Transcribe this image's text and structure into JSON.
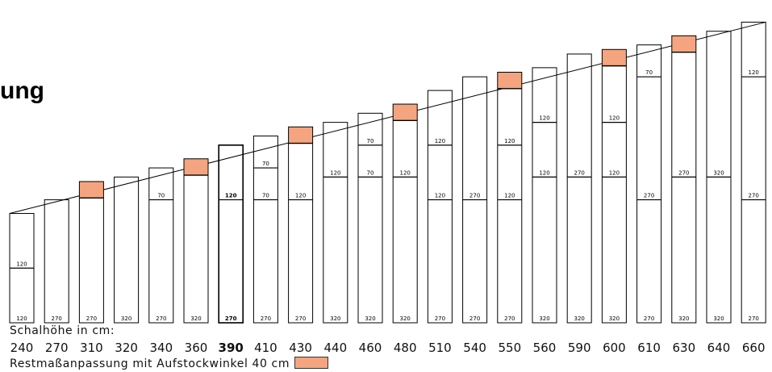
{
  "title_fragment": "ung",
  "height_label": "Schalhöhe in cm:",
  "legend": {
    "text": "Restmaßanpassung mit Aufstockwinkel 40 cm",
    "color": "#f4a57f"
  },
  "columns": [
    {
      "height": 240,
      "bottom": 120,
      "upper": [
        120
      ],
      "top": null,
      "orange": false,
      "bold": false
    },
    {
      "height": 270,
      "bottom": 270,
      "upper": [],
      "top": null,
      "orange": false,
      "bold": false
    },
    {
      "height": 310,
      "bottom": 270,
      "upper": [],
      "top": null,
      "orange": true,
      "bold": false
    },
    {
      "height": 320,
      "bottom": 320,
      "upper": [],
      "top": null,
      "orange": false,
      "bold": false
    },
    {
      "height": 340,
      "bottom": 270,
      "upper": [
        70
      ],
      "top": null,
      "orange": false,
      "bold": false
    },
    {
      "height": 360,
      "bottom": 320,
      "upper": [],
      "top": null,
      "orange": true,
      "bold": false
    },
    {
      "height": 390,
      "bottom": 270,
      "upper": [
        120
      ],
      "top": null,
      "orange": false,
      "bold": true
    },
    {
      "height": 410,
      "bottom": 270,
      "upper": [
        70,
        70
      ],
      "top": null,
      "orange": false,
      "bold": false
    },
    {
      "height": 430,
      "bottom": 270,
      "upper": [
        120
      ],
      "top": null,
      "orange": true,
      "bold": false
    },
    {
      "height": 440,
      "bottom": 320,
      "upper": [
        120
      ],
      "top": null,
      "orange": false,
      "bold": false
    },
    {
      "height": 460,
      "bottom": 320,
      "upper": [
        70,
        70
      ],
      "top": null,
      "orange": false,
      "bold": false
    },
    {
      "height": 480,
      "bottom": 320,
      "upper": [
        120
      ],
      "top": null,
      "orange": true,
      "bold": false
    },
    {
      "height": 510,
      "bottom": 270,
      "upper": [
        120,
        120
      ],
      "top": null,
      "orange": false,
      "bold": false
    },
    {
      "height": 540,
      "bottom": 270,
      "upper": [
        270
      ],
      "top": null,
      "orange": false,
      "bold": false
    },
    {
      "height": 550,
      "bottom": 270,
      "upper": [
        120,
        120
      ],
      "top": null,
      "orange": true,
      "bold": false
    },
    {
      "height": 560,
      "bottom": 320,
      "upper": [
        120,
        120
      ],
      "top": null,
      "orange": false,
      "bold": false
    },
    {
      "height": 590,
      "bottom": 320,
      "upper": [
        270
      ],
      "top": null,
      "orange": false,
      "bold": false
    },
    {
      "height": 600,
      "bottom": 320,
      "upper": [
        120,
        120
      ],
      "top": null,
      "orange": true,
      "bold": false
    },
    {
      "height": 610,
      "bottom": 270,
      "upper": [
        270,
        70
      ],
      "top": null,
      "orange": false,
      "bold": false
    },
    {
      "height": 630,
      "bottom": 320,
      "upper": [
        270
      ],
      "top": null,
      "orange": true,
      "bold": false
    },
    {
      "height": 640,
      "bottom": 320,
      "upper": [
        320
      ],
      "top": null,
      "orange": false,
      "bold": false
    },
    {
      "height": 660,
      "bottom": 270,
      "upper": [
        270,
        120
      ],
      "top": null,
      "orange": false,
      "bold": false
    }
  ]
}
